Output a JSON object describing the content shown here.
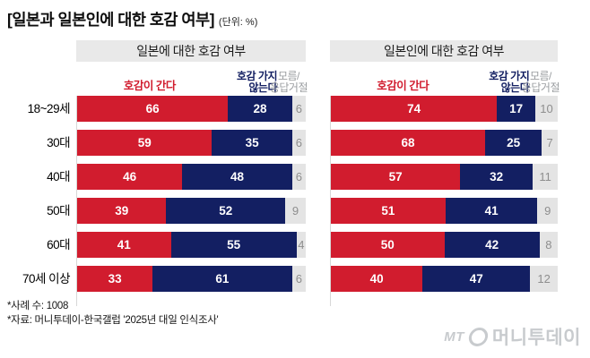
{
  "title": "[일본과 일본인에 대한 호감 여부]",
  "unit_label": "(단위: %)",
  "colors": {
    "favorable": "#d11c2e",
    "unfavorable": "#131f62",
    "unknown_bg": "#e4e4e4",
    "unknown_text": "#8e8e8e",
    "band_bg": "#e9e9e9"
  },
  "legend": {
    "favorable": "호감이 간다",
    "unfavorable_line1": "호감 가지",
    "unfavorable_line2": "않는다",
    "unknown_line1": "모름/",
    "unknown_line2": "응답거절"
  },
  "chart_data": [
    {
      "type": "bar",
      "title": "일본에 대한 호감 여부",
      "stacked": true,
      "orientation": "horizontal",
      "unit": "%",
      "xlim": [
        0,
        100
      ],
      "categories": [
        "18~29세",
        "30대",
        "40대",
        "50대",
        "60대",
        "70세 이상"
      ],
      "series": [
        {
          "name": "호감이 간다",
          "values": [
            66,
            59,
            46,
            39,
            41,
            33
          ]
        },
        {
          "name": "호감 가지 않는다",
          "values": [
            28,
            35,
            48,
            52,
            55,
            61
          ]
        },
        {
          "name": "모름/응답거절",
          "values": [
            6,
            6,
            6,
            9,
            4,
            6
          ]
        }
      ]
    },
    {
      "type": "bar",
      "title": "일본인에 대한 호감 여부",
      "stacked": true,
      "orientation": "horizontal",
      "unit": "%",
      "xlim": [
        0,
        100
      ],
      "categories": [
        "18~29세",
        "30대",
        "40대",
        "50대",
        "60대",
        "70세 이상"
      ],
      "series": [
        {
          "name": "호감이 간다",
          "values": [
            74,
            68,
            57,
            51,
            50,
            40
          ]
        },
        {
          "name": "호감 가지 않는다",
          "values": [
            17,
            25,
            32,
            41,
            42,
            47
          ]
        },
        {
          "name": "모름/응답거절",
          "values": [
            10,
            7,
            11,
            9,
            8,
            12
          ]
        }
      ]
    }
  ],
  "footnotes": [
    "*사례 수: 1008",
    "*자료: 머니투데이-한국갤럽 '2025년 대일 인식조사'"
  ],
  "logo": {
    "mt": "MT",
    "text": "머니투데이"
  }
}
